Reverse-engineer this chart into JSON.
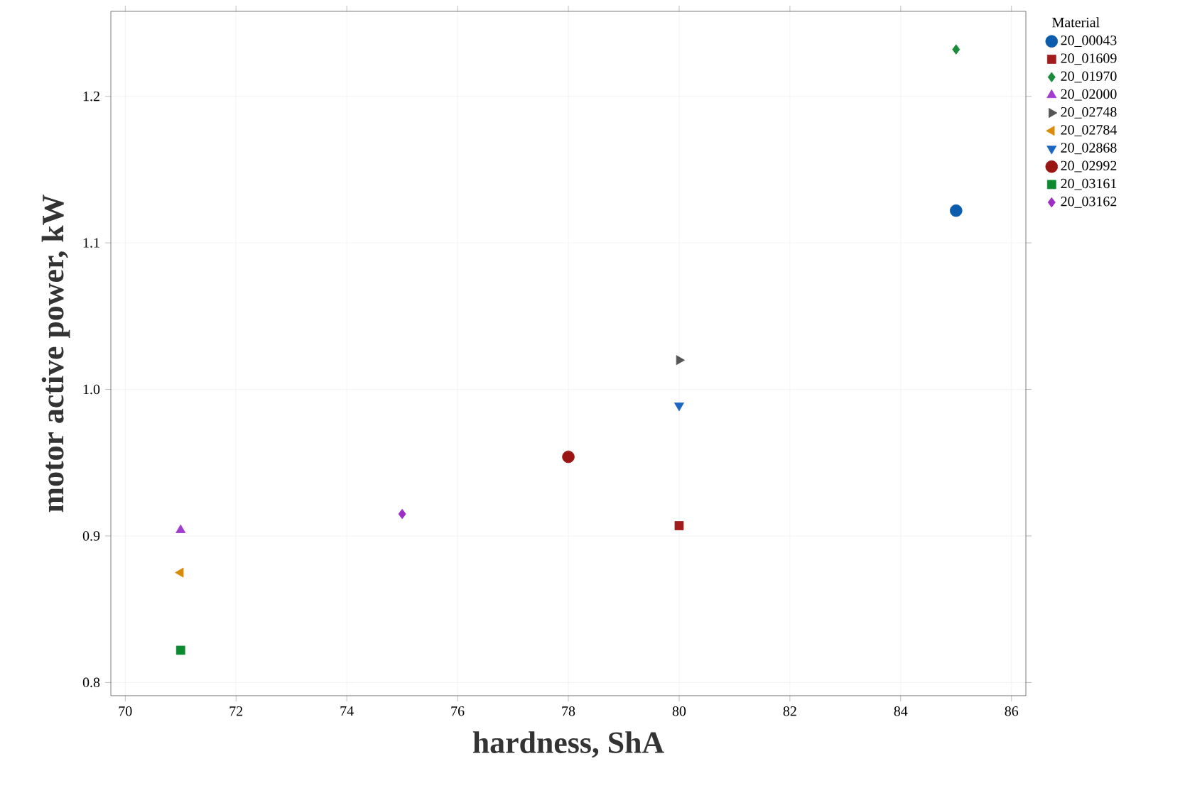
{
  "chart_data": {
    "type": "scatter",
    "xlabel": "hardness, ShA",
    "ylabel": "motor active power, kW",
    "legend_title": "Material",
    "xlim": [
      69.74,
      86.26
    ],
    "ylim": [
      0.791,
      1.258
    ],
    "xticks": [
      70,
      72,
      74,
      76,
      78,
      80,
      82,
      84,
      86
    ],
    "yticks": [
      0.8,
      0.9,
      {
        "value": 1,
        "label": "1.0"
      },
      1.1,
      1.2
    ],
    "grid": true,
    "legend": "right",
    "series": [
      {
        "name": "20_00043",
        "color": "#0b5cad",
        "marker": "circle",
        "x": [
          85
        ],
        "values": [
          1.122
        ]
      },
      {
        "name": "20_01609",
        "color": "#a11d1d",
        "marker": "square",
        "x": [
          80
        ],
        "values": [
          0.907
        ]
      },
      {
        "name": "20_01970",
        "color": "#1a8c3a",
        "marker": "diamond",
        "x": [
          85
        ],
        "values": [
          1.232
        ]
      },
      {
        "name": "20_02000",
        "color": "#a23bcf",
        "marker": "triangle",
        "x": [
          71
        ],
        "values": [
          0.904
        ]
      },
      {
        "name": "20_02748",
        "color": "#555555",
        "marker": "triangle-right",
        "x": [
          80
        ],
        "values": [
          1.02
        ]
      },
      {
        "name": "20_02784",
        "color": "#d98c0b",
        "marker": "triangle-left",
        "x": [
          71
        ],
        "values": [
          0.875
        ]
      },
      {
        "name": "20_02868",
        "color": "#1a66c0",
        "marker": "triangle-down",
        "x": [
          80
        ],
        "values": [
          0.989
        ]
      },
      {
        "name": "20_02992",
        "color": "#9b1414",
        "marker": "circle",
        "x": [
          78
        ],
        "values": [
          0.954
        ]
      },
      {
        "name": "20_03161",
        "color": "#0d8a2f",
        "marker": "square",
        "x": [
          71
        ],
        "values": [
          0.822
        ]
      },
      {
        "name": "20_03162",
        "color": "#9d2ec4",
        "marker": "diamond",
        "x": [
          75
        ],
        "values": [
          0.915
        ]
      }
    ]
  }
}
